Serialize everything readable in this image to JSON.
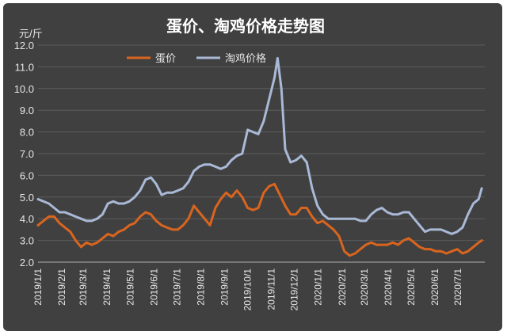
{
  "chart_data": {
    "type": "line",
    "title": "蛋价、淘鸡价格走势图",
    "ylabel": "元/斤",
    "ylim": [
      2.0,
      12.0
    ],
    "ytick_labels": [
      "12.0",
      "11.0",
      "10.0",
      "9.0",
      "8.0",
      "7.0",
      "6.0",
      "5.0",
      "4.0",
      "3.0",
      "2.0"
    ],
    "x_tick_labels": [
      "2019/1/1",
      "2019/2/1",
      "2019/3/1",
      "2019/4/1",
      "2019/5/1",
      "2019/6/1",
      "2019/7/1",
      "2019/8/1",
      "2019/9/1",
      "2019/10/1",
      "2019/11/1",
      "2019/12/1",
      "2020/1/1",
      "2020/2/1",
      "2020/3/1",
      "2020/4/1",
      "2020/5/1",
      "2020/6/1",
      "2020/7/1"
    ],
    "grid": true,
    "legend": "top-left",
    "series": [
      {
        "name": "蛋价",
        "color": "#d9651e",
        "points": [
          [
            "2019/1/1",
            3.7
          ],
          [
            "2019/1/8",
            3.9
          ],
          [
            "2019/1/15",
            4.1
          ],
          [
            "2019/1/22",
            4.1
          ],
          [
            "2019/1/29",
            3.8
          ],
          [
            "2019/2/5",
            3.6
          ],
          [
            "2019/2/12",
            3.4
          ],
          [
            "2019/2/19",
            3.0
          ],
          [
            "2019/2/26",
            2.7
          ],
          [
            "2019/3/5",
            2.9
          ],
          [
            "2019/3/12",
            2.8
          ],
          [
            "2019/3/19",
            2.9
          ],
          [
            "2019/3/26",
            3.1
          ],
          [
            "2019/4/2",
            3.3
          ],
          [
            "2019/4/9",
            3.2
          ],
          [
            "2019/4/16",
            3.4
          ],
          [
            "2019/4/23",
            3.5
          ],
          [
            "2019/4/30",
            3.7
          ],
          [
            "2019/5/7",
            3.8
          ],
          [
            "2019/5/14",
            4.1
          ],
          [
            "2019/5/21",
            4.3
          ],
          [
            "2019/5/28",
            4.2
          ],
          [
            "2019/6/4",
            3.9
          ],
          [
            "2019/6/11",
            3.7
          ],
          [
            "2019/6/18",
            3.6
          ],
          [
            "2019/6/25",
            3.5
          ],
          [
            "2019/7/2",
            3.5
          ],
          [
            "2019/7/9",
            3.7
          ],
          [
            "2019/7/16",
            4.0
          ],
          [
            "2019/7/23",
            4.6
          ],
          [
            "2019/7/30",
            4.3
          ],
          [
            "2019/8/6",
            4.0
          ],
          [
            "2019/8/13",
            3.7
          ],
          [
            "2019/8/20",
            4.5
          ],
          [
            "2019/8/27",
            4.9
          ],
          [
            "2019/9/3",
            5.2
          ],
          [
            "2019/9/10",
            5.0
          ],
          [
            "2019/9/17",
            5.3
          ],
          [
            "2019/9/24",
            5.0
          ],
          [
            "2019/10/1",
            4.5
          ],
          [
            "2019/10/8",
            4.4
          ],
          [
            "2019/10/15",
            4.5
          ],
          [
            "2019/10/22",
            5.2
          ],
          [
            "2019/10/29",
            5.5
          ],
          [
            "2019/11/5",
            5.6
          ],
          [
            "2019/11/12",
            5.1
          ],
          [
            "2019/11/19",
            4.6
          ],
          [
            "2019/11/26",
            4.2
          ],
          [
            "2019/12/3",
            4.2
          ],
          [
            "2019/12/10",
            4.5
          ],
          [
            "2019/12/17",
            4.5
          ],
          [
            "2019/12/24",
            4.1
          ],
          [
            "2019/12/31",
            3.8
          ],
          [
            "2020/1/7",
            3.9
          ],
          [
            "2020/1/14",
            3.7
          ],
          [
            "2020/1/21",
            3.5
          ],
          [
            "2020/1/28",
            3.2
          ],
          [
            "2020/2/4",
            2.5
          ],
          [
            "2020/2/11",
            2.3
          ],
          [
            "2020/2/18",
            2.4
          ],
          [
            "2020/2/25",
            2.6
          ],
          [
            "2020/3/3",
            2.8
          ],
          [
            "2020/3/10",
            2.9
          ],
          [
            "2020/3/17",
            2.8
          ],
          [
            "2020/3/24",
            2.8
          ],
          [
            "2020/3/31",
            2.8
          ],
          [
            "2020/4/7",
            2.9
          ],
          [
            "2020/4/14",
            2.8
          ],
          [
            "2020/4/21",
            3.0
          ],
          [
            "2020/4/28",
            3.1
          ],
          [
            "2020/5/5",
            2.9
          ],
          [
            "2020/5/12",
            2.7
          ],
          [
            "2020/5/19",
            2.6
          ],
          [
            "2020/5/26",
            2.6
          ],
          [
            "2020/6/2",
            2.5
          ],
          [
            "2020/6/9",
            2.5
          ],
          [
            "2020/6/16",
            2.4
          ],
          [
            "2020/6/23",
            2.5
          ],
          [
            "2020/6/30",
            2.6
          ],
          [
            "2020/7/7",
            2.4
          ],
          [
            "2020/7/14",
            2.5
          ],
          [
            "2020/7/21",
            2.7
          ],
          [
            "2020/7/28",
            2.9
          ],
          [
            "2020/8/1",
            3.0
          ]
        ]
      },
      {
        "name": "淘鸡价格",
        "color": "#a9b9d6",
        "points": [
          [
            "2019/1/1",
            4.9
          ],
          [
            "2019/1/8",
            4.8
          ],
          [
            "2019/1/15",
            4.7
          ],
          [
            "2019/1/22",
            4.5
          ],
          [
            "2019/1/29",
            4.3
          ],
          [
            "2019/2/5",
            4.3
          ],
          [
            "2019/2/12",
            4.2
          ],
          [
            "2019/2/19",
            4.1
          ],
          [
            "2019/2/26",
            4.0
          ],
          [
            "2019/3/5",
            3.9
          ],
          [
            "2019/3/12",
            3.9
          ],
          [
            "2019/3/19",
            4.0
          ],
          [
            "2019/3/26",
            4.2
          ],
          [
            "2019/4/2",
            4.7
          ],
          [
            "2019/4/9",
            4.8
          ],
          [
            "2019/4/16",
            4.7
          ],
          [
            "2019/4/23",
            4.7
          ],
          [
            "2019/4/30",
            4.8
          ],
          [
            "2019/5/7",
            5.0
          ],
          [
            "2019/5/14",
            5.3
          ],
          [
            "2019/5/21",
            5.8
          ],
          [
            "2019/5/28",
            5.9
          ],
          [
            "2019/6/4",
            5.6
          ],
          [
            "2019/6/11",
            5.1
          ],
          [
            "2019/6/18",
            5.2
          ],
          [
            "2019/6/25",
            5.2
          ],
          [
            "2019/7/2",
            5.3
          ],
          [
            "2019/7/9",
            5.4
          ],
          [
            "2019/7/16",
            5.7
          ],
          [
            "2019/7/23",
            6.2
          ],
          [
            "2019/7/30",
            6.4
          ],
          [
            "2019/8/6",
            6.5
          ],
          [
            "2019/8/13",
            6.5
          ],
          [
            "2019/8/20",
            6.4
          ],
          [
            "2019/8/27",
            6.3
          ],
          [
            "2019/9/3",
            6.4
          ],
          [
            "2019/9/10",
            6.7
          ],
          [
            "2019/9/17",
            6.9
          ],
          [
            "2019/9/24",
            7.0
          ],
          [
            "2019/10/1",
            8.1
          ],
          [
            "2019/10/8",
            8.0
          ],
          [
            "2019/10/15",
            7.9
          ],
          [
            "2019/10/22",
            8.5
          ],
          [
            "2019/10/29",
            9.5
          ],
          [
            "2019/11/5",
            10.5
          ],
          [
            "2019/11/9",
            11.4
          ],
          [
            "2019/11/14",
            10.0
          ],
          [
            "2019/11/19",
            7.2
          ],
          [
            "2019/11/26",
            6.6
          ],
          [
            "2019/12/3",
            6.7
          ],
          [
            "2019/12/10",
            6.9
          ],
          [
            "2019/12/17",
            6.6
          ],
          [
            "2019/12/24",
            5.4
          ],
          [
            "2019/12/31",
            4.6
          ],
          [
            "2020/1/7",
            4.2
          ],
          [
            "2020/1/14",
            4.0
          ],
          [
            "2020/1/21",
            4.0
          ],
          [
            "2020/1/28",
            4.0
          ],
          [
            "2020/2/4",
            4.0
          ],
          [
            "2020/2/11",
            4.0
          ],
          [
            "2020/2/18",
            4.0
          ],
          [
            "2020/2/25",
            3.9
          ],
          [
            "2020/3/3",
            3.9
          ],
          [
            "2020/3/10",
            4.2
          ],
          [
            "2020/3/17",
            4.4
          ],
          [
            "2020/3/24",
            4.5
          ],
          [
            "2020/3/31",
            4.3
          ],
          [
            "2020/4/7",
            4.2
          ],
          [
            "2020/4/14",
            4.2
          ],
          [
            "2020/4/21",
            4.3
          ],
          [
            "2020/4/28",
            4.3
          ],
          [
            "2020/5/5",
            4.0
          ],
          [
            "2020/5/12",
            3.7
          ],
          [
            "2020/5/19",
            3.4
          ],
          [
            "2020/5/26",
            3.5
          ],
          [
            "2020/6/2",
            3.5
          ],
          [
            "2020/6/9",
            3.5
          ],
          [
            "2020/6/16",
            3.4
          ],
          [
            "2020/6/23",
            3.3
          ],
          [
            "2020/6/30",
            3.4
          ],
          [
            "2020/7/7",
            3.6
          ],
          [
            "2020/7/14",
            4.2
          ],
          [
            "2020/7/21",
            4.7
          ],
          [
            "2020/7/28",
            4.9
          ],
          [
            "2020/8/1",
            5.4
          ]
        ]
      }
    ]
  }
}
